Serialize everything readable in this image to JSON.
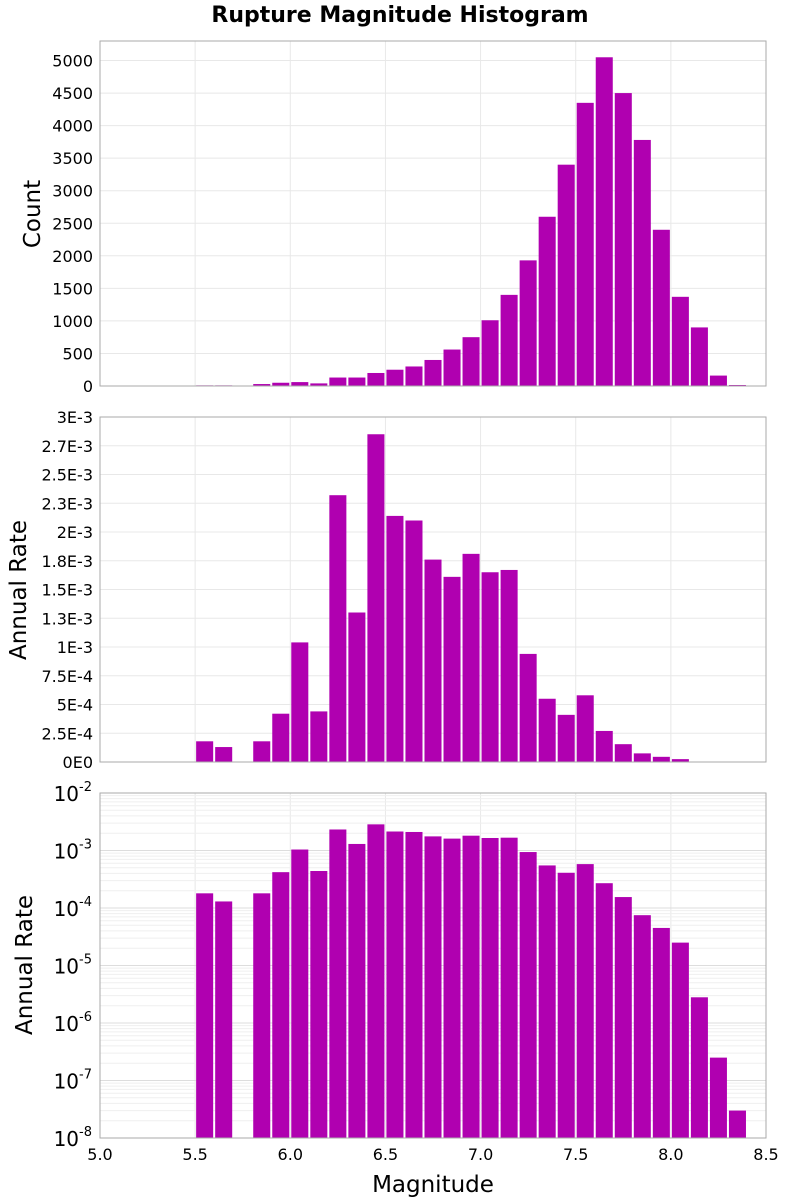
{
  "chart_data": [
    {
      "type": "bar",
      "title": "Rupture Magnitude Histogram",
      "xlabel": "",
      "ylabel": "Count",
      "ylim": [
        0,
        5300
      ],
      "xlim": [
        5.0,
        8.5
      ],
      "bin_width": 0.1,
      "x": [
        5.05,
        5.15,
        5.25,
        5.35,
        5.45,
        5.55,
        5.65,
        5.75,
        5.85,
        5.95,
        6.05,
        6.15,
        6.25,
        6.35,
        6.45,
        6.55,
        6.65,
        6.75,
        6.85,
        6.95,
        7.05,
        7.15,
        7.25,
        7.35,
        7.45,
        7.55,
        7.65,
        7.75,
        7.85,
        7.95,
        8.05,
        8.15,
        8.25,
        8.35,
        8.45
      ],
      "values": [
        0,
        0,
        0,
        0,
        0,
        10,
        10,
        0,
        30,
        50,
        60,
        40,
        130,
        130,
        200,
        250,
        300,
        400,
        560,
        750,
        1010,
        1400,
        1930,
        2600,
        3400,
        4350,
        5050,
        4500,
        3780,
        2400,
        1370,
        900,
        160,
        15,
        0
      ],
      "yticks": [
        "0",
        "500",
        "1000",
        "1500",
        "2000",
        "2500",
        "3000",
        "3500",
        "4000",
        "4500",
        "5000"
      ],
      "ytick_values": [
        0,
        500,
        1000,
        1500,
        2000,
        2500,
        3000,
        3500,
        4000,
        4500,
        5000
      ],
      "grid": true,
      "color": "#b000b0"
    },
    {
      "type": "bar",
      "title": "",
      "xlabel": "",
      "ylabel": "Annual Rate",
      "ylim": [
        0,
        0.003
      ],
      "xlim": [
        5.0,
        8.5
      ],
      "bin_width": 0.1,
      "x": [
        5.05,
        5.15,
        5.25,
        5.35,
        5.45,
        5.55,
        5.65,
        5.75,
        5.85,
        5.95,
        6.05,
        6.15,
        6.25,
        6.35,
        6.45,
        6.55,
        6.65,
        6.75,
        6.85,
        6.95,
        7.05,
        7.15,
        7.25,
        7.35,
        7.45,
        7.55,
        7.65,
        7.75,
        7.85,
        7.95,
        8.05,
        8.15,
        8.25,
        8.35,
        8.45
      ],
      "values": [
        0,
        0,
        0,
        0,
        0,
        0.00018,
        0.00013,
        0,
        0.00018,
        0.00042,
        0.00104,
        0.00044,
        0.00232,
        0.0013,
        0.00285,
        0.00214,
        0.0021,
        0.00176,
        0.00161,
        0.00181,
        0.00165,
        0.00167,
        0.00094,
        0.00055,
        0.00041,
        0.00058,
        0.00027,
        0.000155,
        7.5e-05,
        4.5e-05,
        2.5e-05,
        2.8e-06,
        2.5e-07,
        3e-08,
        0
      ],
      "yticks": [
        "0E0",
        "2.5E-4",
        "5E-4",
        "7.5E-4",
        "1E-3",
        "1.3E-3",
        "1.5E-3",
        "1.8E-3",
        "2E-3",
        "2.3E-3",
        "2.5E-3",
        "2.7E-3",
        "3E-3"
      ],
      "ytick_values": [
        0,
        0.00025,
        0.0005,
        0.00075,
        0.001,
        0.00125,
        0.0015,
        0.00175,
        0.002,
        0.00225,
        0.0025,
        0.00275,
        0.003
      ],
      "grid": true,
      "color": "#b000b0"
    },
    {
      "type": "bar",
      "title": "",
      "xlabel": "Magnitude",
      "ylabel": "Annual Rate",
      "yscale": "log",
      "ylim": [
        1e-08,
        0.01
      ],
      "xlim": [
        5.0,
        8.5
      ],
      "bin_width": 0.1,
      "x": [
        5.05,
        5.15,
        5.25,
        5.35,
        5.45,
        5.55,
        5.65,
        5.75,
        5.85,
        5.95,
        6.05,
        6.15,
        6.25,
        6.35,
        6.45,
        6.55,
        6.65,
        6.75,
        6.85,
        6.95,
        7.05,
        7.15,
        7.25,
        7.35,
        7.45,
        7.55,
        7.65,
        7.75,
        7.85,
        7.95,
        8.05,
        8.15,
        8.25,
        8.35,
        8.45
      ],
      "values": [
        0,
        0,
        0,
        0,
        0,
        0.00018,
        0.00013,
        0,
        0.00018,
        0.00042,
        0.00104,
        0.00044,
        0.00232,
        0.0013,
        0.00285,
        0.00214,
        0.0021,
        0.00176,
        0.00161,
        0.00181,
        0.00165,
        0.00167,
        0.00094,
        0.00055,
        0.00041,
        0.00058,
        0.00027,
        0.000155,
        7.5e-05,
        4.5e-05,
        2.5e-05,
        2.8e-06,
        2.5e-07,
        3e-08,
        0
      ],
      "ytick_values": [
        1e-08,
        1e-07,
        1e-06,
        1e-05,
        0.0001,
        0.001,
        0.01
      ],
      "yticks_mantissa": [
        "10",
        "10",
        "10",
        "10",
        "10",
        "10",
        "10"
      ],
      "yticks_exponent": [
        "-8",
        "-7",
        "-6",
        "-5",
        "-4",
        "-3",
        "-2"
      ],
      "xticks": [
        "5.0",
        "5.5",
        "6.0",
        "6.5",
        "7.0",
        "7.5",
        "8.0",
        "8.5"
      ],
      "xtick_values": [
        5.0,
        5.5,
        6.0,
        6.5,
        7.0,
        7.5,
        8.0,
        8.5
      ],
      "grid": true,
      "color": "#b000b0"
    }
  ]
}
